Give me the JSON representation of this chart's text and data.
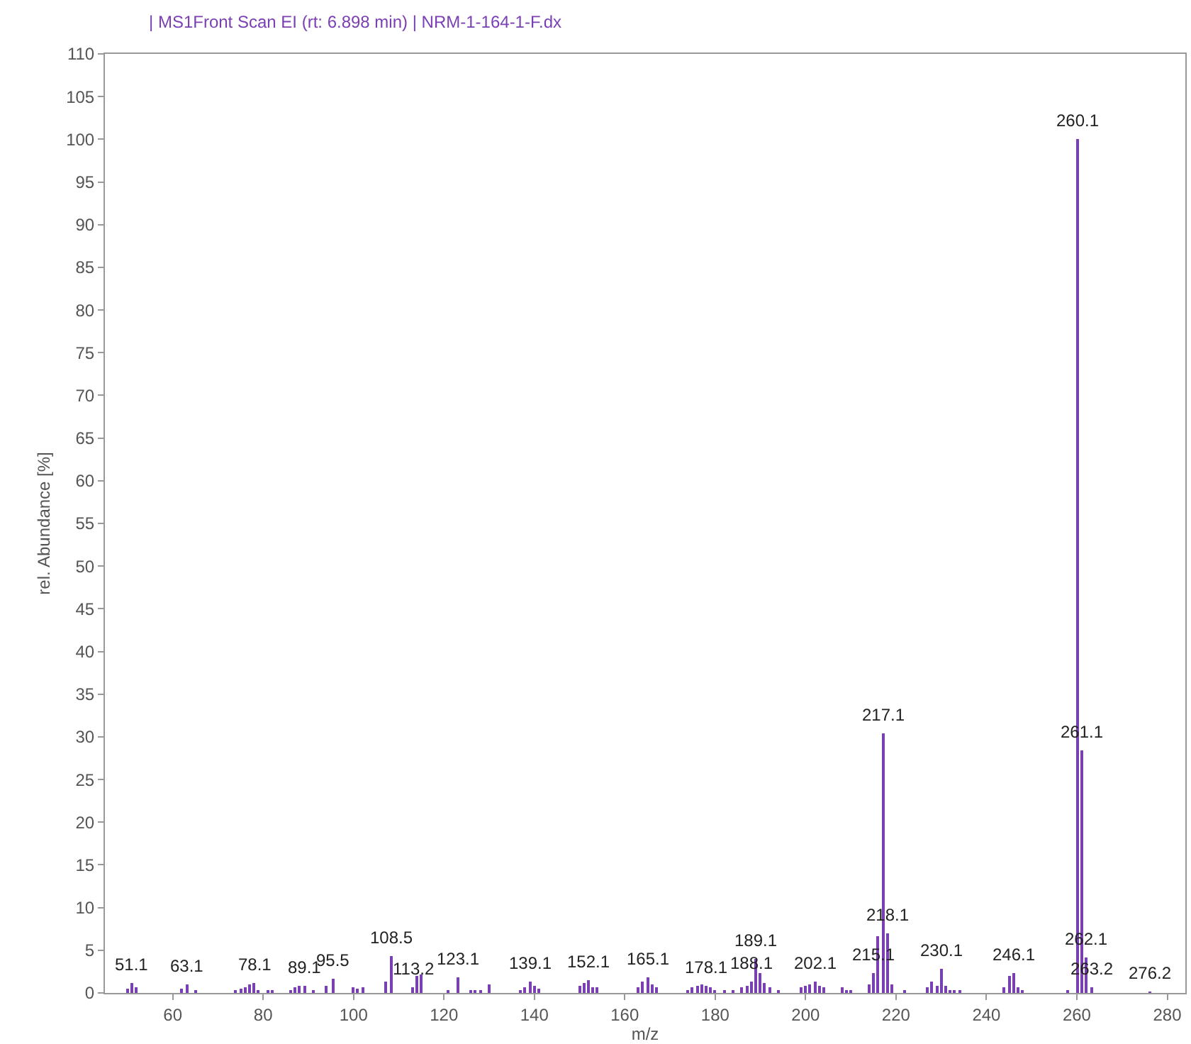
{
  "chart_data": {
    "type": "bar",
    "title": "| MS1Front Scan EI (rt: 6.898 min) | NRM-1-164-1-F.dx",
    "xlabel": "m/z",
    "ylabel": "rel. Abundance [%]",
    "x": [
      50,
      51.1,
      52,
      62,
      63.1,
      65,
      74,
      75,
      76,
      77,
      78.1,
      79,
      81,
      82,
      86,
      87,
      88,
      89.1,
      91,
      94,
      95.5,
      100,
      101,
      102,
      107,
      108.5,
      113.2,
      114,
      115,
      121,
      123.1,
      126,
      127,
      128,
      130,
      137,
      138,
      139.1,
      140,
      141,
      150,
      151,
      152.1,
      153,
      154,
      163,
      164,
      165.1,
      166,
      167,
      174,
      175,
      176,
      177,
      178.1,
      179,
      180,
      182,
      184,
      186,
      187,
      188.1,
      189.1,
      190,
      191,
      192,
      194,
      199,
      200,
      201,
      202.1,
      203,
      204,
      208,
      209,
      210,
      214,
      215.1,
      216,
      217.1,
      218.1,
      219,
      222,
      227,
      228,
      229,
      230.1,
      231,
      232,
      233,
      234,
      244,
      245,
      246.1,
      247,
      248,
      258,
      260.1,
      261.1,
      262.1,
      263.2,
      276.2
    ],
    "values": [
      0.5,
      1.1,
      0.6,
      0.5,
      1.0,
      0.4,
      0.4,
      0.5,
      0.6,
      1.0,
      1.2,
      0.4,
      0.4,
      0.4,
      0.4,
      0.6,
      0.9,
      0.9,
      0.3,
      0.8,
      1.6,
      0.6,
      0.5,
      0.6,
      1.3,
      4.3,
      0.6,
      2.0,
      2.2,
      0.4,
      1.8,
      0.4,
      0.4,
      0.4,
      1.0,
      0.4,
      0.7,
      1.4,
      0.9,
      0.5,
      0.9,
      1.2,
      1.5,
      0.6,
      0.6,
      0.7,
      1.3,
      1.9,
      1.0,
      0.6,
      0.3,
      0.6,
      0.8,
      1.0,
      0.8,
      0.6,
      0.4,
      0.4,
      0.4,
      0.6,
      0.9,
      1.4,
      4.0,
      2.3,
      1.2,
      0.6,
      0.4,
      0.6,
      0.8,
      1.0,
      1.3,
      0.9,
      0.7,
      0.6,
      0.4,
      0.4,
      1.0,
      2.3,
      6.7,
      30.4,
      7.0,
      1.0,
      0.3,
      0.6,
      1.4,
      0.9,
      2.8,
      0.9,
      0.4,
      0.4,
      0.4,
      0.6,
      2.0,
      2.4,
      0.6,
      0.4,
      0.4,
      100,
      28.4,
      4.2,
      0.6,
      0.1
    ],
    "color": "#7b3fb4",
    "xlim": [
      45,
      284
    ],
    "xticks": [
      60,
      80,
      100,
      120,
      140,
      160,
      180,
      200,
      220,
      240,
      260,
      280
    ],
    "ylim": [
      0,
      110
    ],
    "yticks": [
      0,
      5,
      10,
      15,
      20,
      25,
      30,
      35,
      40,
      45,
      50,
      55,
      60,
      65,
      70,
      75,
      80,
      85,
      90,
      95,
      100,
      105,
      110
    ],
    "grid": false,
    "annotations": [
      {
        "text": "51.1",
        "x": 51.1,
        "y": 1.1
      },
      {
        "text": "63.1",
        "x": 63.1,
        "y": 1.0
      },
      {
        "text": "78.1",
        "x": 78.1,
        "y": 1.2
      },
      {
        "text": "89.1",
        "x": 89.1,
        "y": 0.9
      },
      {
        "text": "95.5",
        "x": 95.5,
        "y": 1.6
      },
      {
        "text": "108.5",
        "x": 108.5,
        "y": 4.3
      },
      {
        "text": "113.2",
        "x": 113.2,
        "y": 0.6
      },
      {
        "text": "123.1",
        "x": 123.1,
        "y": 1.8
      },
      {
        "text": "139.1",
        "x": 139.1,
        "y": 1.4
      },
      {
        "text": "152.1",
        "x": 152.1,
        "y": 1.5
      },
      {
        "text": "165.1",
        "x": 165.1,
        "y": 1.9
      },
      {
        "text": "178.1",
        "x": 178.1,
        "y": 0.8
      },
      {
        "text": "188.1",
        "x": 188.1,
        "y": 1.4
      },
      {
        "text": "189.1",
        "x": 189.1,
        "y": 4.0
      },
      {
        "text": "202.1",
        "x": 202.1,
        "y": 1.3
      },
      {
        "text": "215.1",
        "x": 215.1,
        "y": 2.3
      },
      {
        "text": "217.1",
        "x": 217.1,
        "y": 30.4
      },
      {
        "text": "218.1",
        "x": 218.1,
        "y": 7.0
      },
      {
        "text": "230.1",
        "x": 230.1,
        "y": 2.8
      },
      {
        "text": "246.1",
        "x": 246.1,
        "y": 2.4
      },
      {
        "text": "260.1",
        "x": 260.1,
        "y": 100
      },
      {
        "text": "261.1",
        "x": 261.1,
        "y": 28.4
      },
      {
        "text": "262.1",
        "x": 262.1,
        "y": 4.2
      },
      {
        "text": "263.2",
        "x": 263.2,
        "y": 0.6
      },
      {
        "text": "276.2",
        "x": 276.2,
        "y": 0.1
      }
    ]
  }
}
